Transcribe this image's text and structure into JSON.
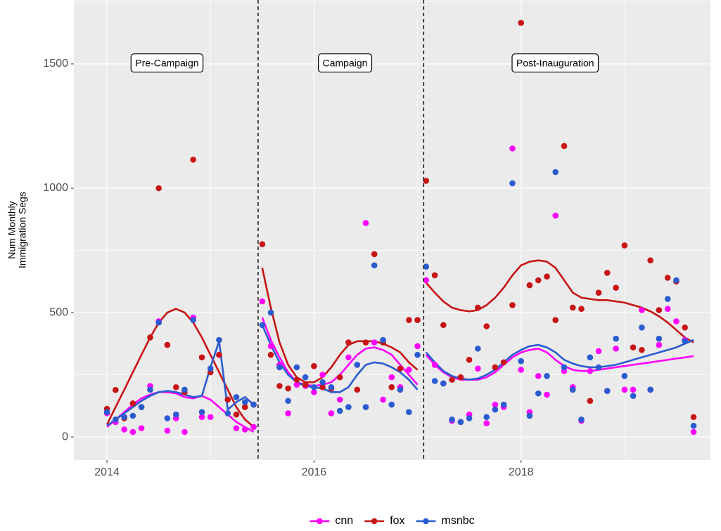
{
  "chart_data": {
    "type": "scatter",
    "ylabel": [
      "Num Monthly",
      "Immigration Segs"
    ],
    "xlim": [
      2013.68,
      2019.83
    ],
    "ylim": [
      -93,
      1757
    ],
    "xticks": [
      2014,
      2016,
      2018
    ],
    "yticks": [
      0,
      500,
      1000,
      1500
    ],
    "grid": true,
    "legend": "bottom",
    "vlines": [
      2015.46,
      2017.06
    ],
    "annotations": [
      {
        "text": "Pre-Campaign",
        "x": 2014.58,
        "y": 1500
      },
      {
        "text": "Campaign",
        "x": 2016.3,
        "y": 1500
      },
      {
        "text": "Post-Inauguration",
        "x": 2018.33,
        "y": 1500
      }
    ],
    "x": [
      2014.0,
      2014.083,
      2014.167,
      2014.25,
      2014.333,
      2014.417,
      2014.5,
      2014.583,
      2014.667,
      2014.75,
      2014.833,
      2014.917,
      2015.0,
      2015.083,
      2015.167,
      2015.25,
      2015.333,
      2015.417,
      2015.5,
      2015.583,
      2015.667,
      2015.75,
      2015.833,
      2015.917,
      2016.0,
      2016.083,
      2016.167,
      2016.25,
      2016.333,
      2016.417,
      2016.5,
      2016.583,
      2016.667,
      2016.75,
      2016.833,
      2016.917,
      2017.0,
      2017.083,
      2017.167,
      2017.25,
      2017.333,
      2017.417,
      2017.5,
      2017.583,
      2017.667,
      2017.75,
      2017.833,
      2017.917,
      2018.0,
      2018.083,
      2018.167,
      2018.25,
      2018.333,
      2018.417,
      2018.5,
      2018.583,
      2018.667,
      2018.75,
      2018.833,
      2018.917,
      2019.0,
      2019.083,
      2019.167,
      2019.25,
      2019.333,
      2019.417,
      2019.5,
      2019.583,
      2019.667
    ],
    "series": [
      {
        "name": "cnn",
        "color": "#ff00ff",
        "values": [
          95,
          60,
          30,
          20,
          35,
          205,
          465,
          25,
          75,
          20,
          480,
          80,
          80,
          330,
          150,
          35,
          30,
          40,
          545,
          365,
          290,
          95,
          210,
          205,
          180,
          250,
          95,
          150,
          320,
          290,
          860,
          380,
          150,
          240,
          200,
          270,
          365,
          630,
          290,
          215,
          65,
          60,
          90,
          275,
          55,
          130,
          120,
          1160,
          270,
          100,
          245,
          170,
          890,
          265,
          200,
          65,
          265,
          345,
          185,
          355,
          190,
          190,
          510,
          190,
          370,
          515,
          465,
          390,
          20
        ],
        "trend": [
          40,
          70,
          100,
          130,
          155,
          170,
          180,
          180,
          175,
          160,
          155,
          165,
          150,
          120,
          90,
          60,
          40,
          20,
          480,
          390,
          320,
          260,
          220,
          210,
          205,
          210,
          220,
          250,
          290,
          330,
          355,
          360,
          350,
          330,
          290,
          250,
          210,
          330,
          290,
          260,
          240,
          230,
          230,
          230,
          240,
          260,
          290,
          320,
          340,
          350,
          355,
          340,
          310,
          285,
          270,
          265,
          265,
          270,
          275,
          280,
          285,
          290,
          295,
          300,
          305,
          310,
          315,
          320,
          325
        ]
      },
      {
        "name": "fox",
        "color": "#c81414",
        "values": [
          113,
          189,
          75,
          135,
          120,
          400,
          1000,
          370,
          200,
          180,
          1115,
          320,
          260,
          330,
          150,
          90,
          120,
          130,
          775,
          330,
          205,
          195,
          230,
          210,
          285,
          200,
          195,
          240,
          380,
          190,
          380,
          735,
          380,
          200,
          275,
          470,
          470,
          1030,
          650,
          450,
          230,
          240,
          310,
          520,
          445,
          280,
          300,
          530,
          1665,
          610,
          630,
          645,
          470,
          1170,
          520,
          515,
          145,
          580,
          660,
          600,
          770,
          360,
          350,
          710,
          510,
          640,
          625,
          440,
          80
        ],
        "trend": [
          50,
          120,
          190,
          260,
          330,
          400,
          460,
          500,
          515,
          500,
          460,
          400,
          330,
          260,
          190,
          120,
          70,
          40,
          680,
          520,
          380,
          290,
          240,
          220,
          220,
          240,
          280,
          330,
          370,
          385,
          385,
          385,
          375,
          360,
          340,
          300,
          270,
          620,
          580,
          545,
          520,
          510,
          505,
          510,
          530,
          560,
          600,
          650,
          690,
          705,
          710,
          705,
          680,
          630,
          580,
          560,
          555,
          550,
          550,
          545,
          540,
          530,
          520,
          505,
          485,
          460,
          430,
          400,
          380
        ]
      },
      {
        "name": "msnbc",
        "color": "#2a5bd0",
        "values": [
          100,
          70,
          80,
          85,
          120,
          190,
          460,
          75,
          90,
          190,
          470,
          100,
          275,
          390,
          95,
          160,
          140,
          130,
          450,
          500,
          280,
          145,
          280,
          240,
          200,
          220,
          200,
          105,
          120,
          290,
          120,
          690,
          390,
          130,
          190,
          100,
          330,
          685,
          225,
          215,
          70,
          60,
          75,
          355,
          80,
          110,
          130,
          1020,
          305,
          85,
          175,
          245,
          1065,
          280,
          190,
          70,
          320,
          280,
          185,
          395,
          245,
          165,
          440,
          190,
          395,
          555,
          630,
          385,
          45
        ],
        "trend": [
          45,
          70,
          95,
          120,
          145,
          165,
          180,
          185,
          180,
          170,
          160,
          165,
          280,
          385,
          110,
          140,
          160,
          130,
          450,
          370,
          300,
          250,
          220,
          205,
          200,
          195,
          180,
          180,
          200,
          250,
          290,
          300,
          295,
          280,
          260,
          230,
          190,
          340,
          300,
          265,
          245,
          235,
          230,
          235,
          250,
          270,
          300,
          330,
          350,
          365,
          370,
          360,
          340,
          310,
          295,
          285,
          280,
          280,
          285,
          290,
          300,
          310,
          320,
          330,
          340,
          350,
          360,
          375,
          390
        ]
      }
    ]
  }
}
